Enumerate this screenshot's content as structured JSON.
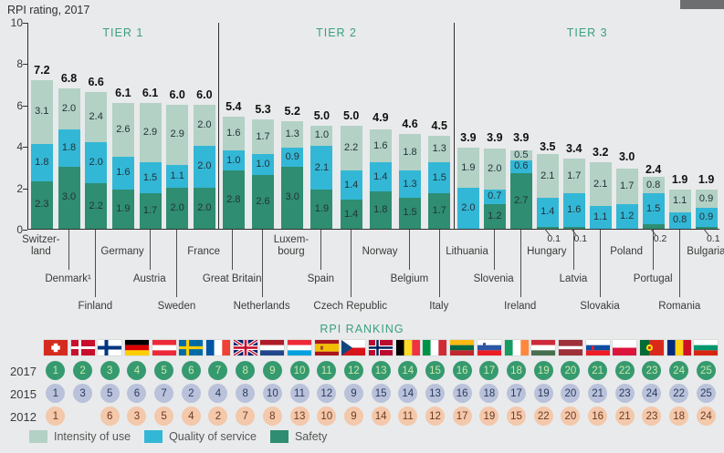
{
  "corner_tab_color": "#6d6e70",
  "chart_data": {
    "type": "bar",
    "stacked": true,
    "title": "RPI rating, 2017",
    "ylim": [
      0,
      10
    ],
    "yticks": [
      0,
      2,
      4,
      6,
      8,
      10
    ],
    "grid": false,
    "segment_order": [
      "safety",
      "quality",
      "intensity"
    ],
    "colors": {
      "safety": "#2f8d71",
      "quality": "#33b7d6",
      "intensity": "#b3d1c5"
    },
    "tiers": [
      {
        "label": "TIER 1",
        "count": 7
      },
      {
        "label": "TIER 2",
        "count": 8
      },
      {
        "label": "TIER 3",
        "count": 10
      }
    ],
    "countries": [
      {
        "id": "switzerland",
        "name": "Switzer-\nland",
        "label_row": 1,
        "total": 7.2,
        "safety": 2.3,
        "quality": 1.8,
        "intensity": 3.1,
        "flag": {
          "t": "swiss"
        }
      },
      {
        "id": "denmark",
        "name": "Denmark¹",
        "label_row": 2,
        "total": 6.8,
        "safety": 3.0,
        "quality": 1.8,
        "intensity": 2.0,
        "flag": {
          "t": "nordic",
          "bg": "#c8102e",
          "cr": "#ffffff",
          "th": 3
        }
      },
      {
        "id": "finland",
        "name": "Finland",
        "label_row": 3,
        "total": 6.6,
        "safety": 2.2,
        "quality": 2.0,
        "intensity": 2.4,
        "flag": {
          "t": "nordic",
          "bg": "#ffffff",
          "cr": "#003580",
          "th": 4
        }
      },
      {
        "id": "germany",
        "name": "Germany",
        "label_row": 1,
        "total": 6.1,
        "safety": 1.9,
        "quality": 1.6,
        "intensity": 2.6,
        "flag": {
          "t": "h",
          "c": [
            "#000000",
            "#dd0000",
            "#ffce00"
          ]
        }
      },
      {
        "id": "austria",
        "name": "Austria",
        "label_row": 2,
        "total": 6.1,
        "safety": 1.7,
        "quality": 1.5,
        "intensity": 2.9,
        "flag": {
          "t": "h",
          "c": [
            "#ed2939",
            "#ffffff",
            "#ed2939"
          ]
        }
      },
      {
        "id": "sweden",
        "name": "Sweden",
        "label_row": 3,
        "total": 6.0,
        "safety": 2.0,
        "quality": 1.1,
        "intensity": 2.9,
        "flag": {
          "t": "nordic",
          "bg": "#006aa7",
          "cr": "#fecc02",
          "th": 3.2
        }
      },
      {
        "id": "france",
        "name": "France",
        "label_row": 1,
        "total": 6.0,
        "safety": 2.0,
        "quality": 2.0,
        "intensity": 2.0,
        "flag": {
          "t": "v",
          "c": [
            "#0055a4",
            "#ffffff",
            "#ef4135"
          ]
        }
      },
      {
        "id": "great-britain",
        "name": "Great Britain",
        "label_row": 2,
        "total": 5.4,
        "safety": 2.8,
        "quality": 1.0,
        "intensity": 1.6,
        "flag": {
          "t": "uk"
        }
      },
      {
        "id": "netherlands",
        "name": "Netherlands",
        "label_row": 3,
        "total": 5.3,
        "safety": 2.6,
        "quality": 1.0,
        "intensity": 1.7,
        "flag": {
          "t": "h",
          "c": [
            "#ae1c28",
            "#ffffff",
            "#21468b"
          ]
        }
      },
      {
        "id": "luxembourg",
        "name": "Luxem-\nbourg",
        "label_row": 1,
        "total": 5.2,
        "safety": 3.0,
        "quality": 0.9,
        "intensity": 1.3,
        "flag": {
          "t": "h",
          "c": [
            "#ed2939",
            "#ffffff",
            "#00a1de"
          ]
        }
      },
      {
        "id": "spain",
        "name": "Spain",
        "label_row": 2,
        "total": 5.0,
        "safety": 1.9,
        "quality": 2.1,
        "intensity": 1.0,
        "flag": {
          "t": "h",
          "c": [
            "#aa151b",
            "#f1bf00",
            "#aa151b"
          ],
          "w": [
            1,
            2,
            1
          ],
          "em": {
            "x": 6,
            "y": 6.5,
            "c": "#a04a2a"
          }
        }
      },
      {
        "id": "czech-republic",
        "name": "Czech Republic",
        "label_row": 3,
        "total": 5.0,
        "safety": 1.4,
        "quality": 1.4,
        "intensity": 2.2,
        "flag": {
          "t": "czech"
        }
      },
      {
        "id": "norway",
        "name": "Norway",
        "label_row": 1,
        "total": 4.9,
        "safety": 1.8,
        "quality": 1.4,
        "intensity": 1.6,
        "flag": {
          "t": "norway"
        }
      },
      {
        "id": "belgium",
        "name": "Belgium",
        "label_row": 2,
        "total": 4.6,
        "safety": 1.5,
        "quality": 1.3,
        "intensity": 1.8,
        "flag": {
          "t": "v",
          "c": [
            "#000000",
            "#fdda24",
            "#ef3340"
          ]
        }
      },
      {
        "id": "italy",
        "name": "Italy",
        "label_row": 3,
        "total": 4.5,
        "safety": 1.7,
        "quality": 1.5,
        "intensity": 1.3,
        "flag": {
          "t": "v",
          "c": [
            "#009246",
            "#ffffff",
            "#ce2b37"
          ]
        }
      },
      {
        "id": "lithuania",
        "name": "Lithuania",
        "label_row": 1,
        "total": 3.9,
        "safety": 0,
        "quality": 2.0,
        "intensity": 1.9,
        "flag": {
          "t": "h",
          "c": [
            "#fdb913",
            "#006a44",
            "#c1272d"
          ]
        }
      },
      {
        "id": "slovenia",
        "name": "Slovenia",
        "label_row": 2,
        "total": 3.9,
        "safety": 1.2,
        "quality": 0.7,
        "intensity": 2.0,
        "flag": {
          "t": "h",
          "c": [
            "#ffffff",
            "#2b57a5",
            "#ed1c24"
          ],
          "em": {
            "x": 6,
            "y": 3,
            "c": "#2b57a5"
          }
        }
      },
      {
        "id": "ireland",
        "name": "Ireland",
        "label_row": 3,
        "total": 3.9,
        "safety": 2.7,
        "quality": 0.6,
        "intensity": 0.5,
        "flag": {
          "t": "v",
          "c": [
            "#169b62",
            "#ffffff",
            "#ff883e"
          ]
        }
      },
      {
        "id": "hungary",
        "name": "Hungary",
        "label_row": 1,
        "total": 3.5,
        "safety": 0.1,
        "quality": 1.4,
        "intensity": 2.1,
        "safety_below": "0.1",
        "flag": {
          "t": "h",
          "c": [
            "#ce2939",
            "#ffffff",
            "#477050"
          ]
        }
      },
      {
        "id": "latvia",
        "name": "Latvia",
        "label_row": 2,
        "total": 3.4,
        "safety": 0.1,
        "quality": 1.6,
        "intensity": 1.7,
        "safety_below": "0.1",
        "flag": {
          "t": "h",
          "c": [
            "#9e3039",
            "#ffffff",
            "#9e3039"
          ],
          "w": [
            2,
            1,
            2
          ]
        }
      },
      {
        "id": "slovakia",
        "name": "Slovakia",
        "label_row": 3,
        "total": 3.2,
        "safety": 0,
        "quality": 1.1,
        "intensity": 2.1,
        "flag": {
          "t": "h",
          "c": [
            "#ffffff",
            "#0b4ea2",
            "#ee1c25"
          ],
          "em": {
            "x": 6,
            "y": 6.5,
            "c": "#ee1c25"
          }
        }
      },
      {
        "id": "poland",
        "name": "Poland",
        "label_row": 1,
        "total": 3.0,
        "safety": 0,
        "quality": 1.2,
        "intensity": 1.7,
        "flag": {
          "t": "h",
          "c": [
            "#ffffff",
            "#dc143c"
          ]
        }
      },
      {
        "id": "portugal",
        "name": "Portugal",
        "label_row": 2,
        "total": 2.4,
        "safety": 0.2,
        "quality": 1.5,
        "intensity": 0.8,
        "safety_below": "0.2",
        "flag": {
          "t": "portugal"
        }
      },
      {
        "id": "romania",
        "name": "Romania",
        "label_row": 3,
        "total": 1.9,
        "safety": 0,
        "quality": 0.8,
        "intensity": 1.1,
        "flag": {
          "t": "v",
          "c": [
            "#002b7f",
            "#fcd116",
            "#ce1126"
          ]
        }
      },
      {
        "id": "bulgaria",
        "name": "Bulgaria",
        "label_row": 1,
        "total": 1.9,
        "safety": 0.1,
        "quality": 0.9,
        "intensity": 0.9,
        "safety_below": "0.1",
        "flag": {
          "t": "h",
          "c": [
            "#ffffff",
            "#00966e",
            "#d62612"
          ]
        }
      }
    ]
  },
  "ranking": {
    "title": "RPI RANKING",
    "years": [
      {
        "label": "2017",
        "bg": "#369a70",
        "fg": "#cde8a9",
        "values": [
          1,
          2,
          3,
          4,
          5,
          6,
          7,
          8,
          9,
          10,
          11,
          12,
          13,
          14,
          15,
          16,
          17,
          18,
          19,
          20,
          21,
          22,
          23,
          24,
          25
        ]
      },
      {
        "label": "2015",
        "bg": "#b9c2da",
        "fg": "#2c3a5e",
        "values": [
          1,
          3,
          5,
          6,
          7,
          2,
          4,
          8,
          10,
          11,
          12,
          9,
          15,
          14,
          13,
          16,
          18,
          17,
          19,
          20,
          21,
          23,
          24,
          22,
          25
        ]
      },
      {
        "label": "2012",
        "bg": "#f3c8ab",
        "fg": "#6e3a22",
        "values": [
          1,
          null,
          6,
          3,
          5,
          4,
          2,
          7,
          8,
          13,
          10,
          9,
          14,
          11,
          12,
          17,
          19,
          15,
          22,
          20,
          16,
          21,
          23,
          18,
          24
        ]
      }
    ]
  },
  "legend": [
    {
      "key": "intensity",
      "label": "Intensity of use",
      "color": "#b3d1c5"
    },
    {
      "key": "quality",
      "label": "Quality of service",
      "color": "#33b7d6"
    },
    {
      "key": "safety",
      "label": "Safety",
      "color": "#2f8d71"
    }
  ]
}
